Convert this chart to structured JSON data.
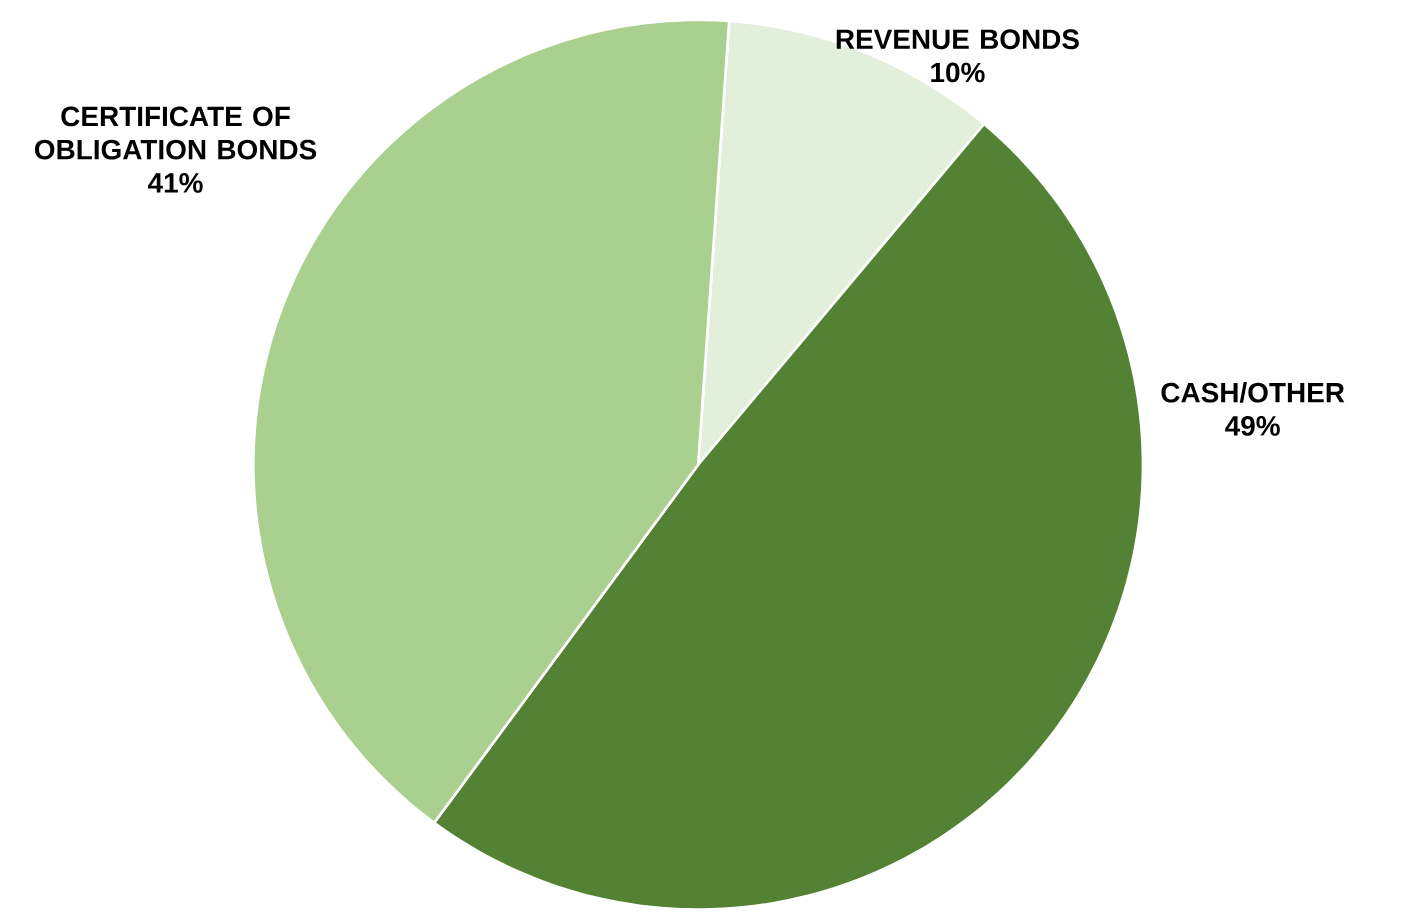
{
  "chart_data": {
    "type": "pie",
    "categories": [
      "REVENUE BONDS",
      "CASH/OTHER",
      "CERTIFICATE OF OBLIGATION BONDS"
    ],
    "values": [
      10,
      49,
      41
    ],
    "colors": [
      "#e2efda",
      "#548235",
      "#a9d08e"
    ],
    "value_labels": [
      "10%",
      "49%",
      "41%"
    ]
  }
}
